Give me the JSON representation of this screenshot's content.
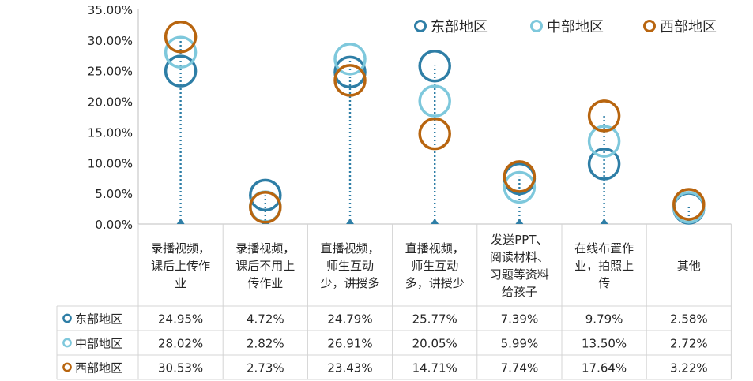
{
  "chart_data": {
    "type": "scatter",
    "ylim": [
      0,
      0.35
    ],
    "yticks": [
      "0.00%",
      "5.00%",
      "10.00%",
      "15.00%",
      "20.00%",
      "25.00%",
      "30.00%",
      "35.00%"
    ],
    "categories": [
      "录播视频，课后上传作业",
      "录播视频，课后不用上传作业",
      "直播视频，师生互动少，讲授多",
      "直播视频，师生互动多，讲授少",
      "发送PPT、阅读材料、习题等资料给孩子",
      "在线布置作业，拍照上传",
      "其他"
    ],
    "category_lines": [
      [
        "录播视频，",
        "课后上传作",
        "业"
      ],
      [
        "录播视频，",
        "课后不用上",
        "传作业"
      ],
      [
        "直播视频，",
        "师生互动",
        "少，讲授多"
      ],
      [
        "直播视频，",
        "师生互动",
        "多，讲授少"
      ],
      [
        "发送PPT、",
        "阅读材料、",
        "习题等资料",
        "给孩子"
      ],
      [
        "在线布置作",
        "业，拍照上",
        "传"
      ],
      [
        "其他"
      ]
    ],
    "series": [
      {
        "name": "东部地区",
        "color": "#2e7ea6",
        "values": [
          0.2495,
          0.0472,
          0.2479,
          0.2577,
          0.0739,
          0.0979,
          0.0258
        ],
        "labels": [
          "24.95%",
          "4.72%",
          "24.79%",
          "25.77%",
          "7.39%",
          "9.79%",
          "2.58%"
        ]
      },
      {
        "name": "中部地区",
        "color": "#7ec8dc",
        "values": [
          0.2802,
          0.0282,
          0.2691,
          0.2005,
          0.0599,
          0.135,
          0.0272
        ],
        "labels": [
          "28.02%",
          "2.82%",
          "26.91%",
          "20.05%",
          "5.99%",
          "13.50%",
          "2.72%"
        ]
      },
      {
        "name": "西部地区",
        "color": "#b8650f",
        "values": [
          0.3053,
          0.0273,
          0.2343,
          0.1471,
          0.0774,
          0.1764,
          0.0322
        ],
        "labels": [
          "30.53%",
          "2.73%",
          "23.43%",
          "14.71%",
          "7.74%",
          "17.64%",
          "3.22%"
        ]
      }
    ],
    "legend": {
      "position": "top-right"
    },
    "line_color": "#2e7ea6",
    "grid": false
  }
}
